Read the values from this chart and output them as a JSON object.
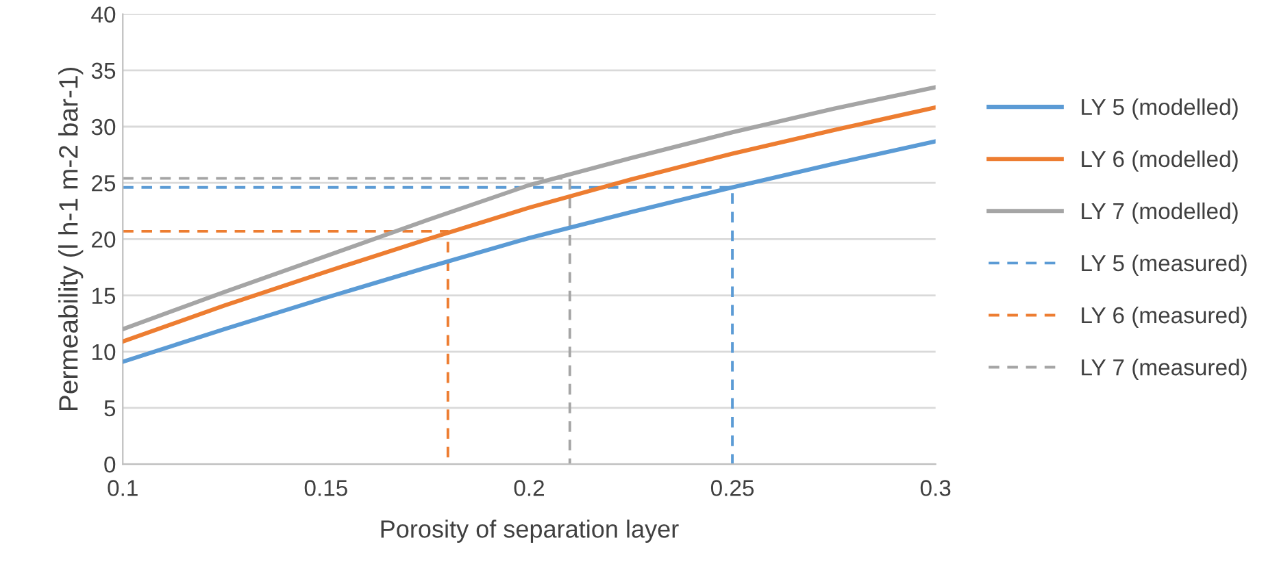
{
  "chart_data": {
    "type": "line",
    "xlabel": "Porosity of separation layer",
    "ylabel": "Permeability (l h-1 m-2 bar-1)",
    "xlim": [
      0.1,
      0.3
    ],
    "xticks": [
      0.1,
      0.15,
      0.2,
      0.25,
      0.3
    ],
    "ylim": [
      0,
      40
    ],
    "yticks": [
      0,
      5,
      10,
      15,
      20,
      25,
      30,
      35,
      40
    ],
    "grid": "y",
    "legend": "right",
    "marker": "none",
    "series": [
      {
        "name": "LY 5 (modelled)",
        "color": "#5b9bd5",
        "line_style": "solid",
        "x": [
          0.1,
          0.125,
          0.15,
          0.175,
          0.2,
          0.225,
          0.25,
          0.275,
          0.3
        ],
        "values": [
          9.1,
          12.0,
          14.8,
          17.5,
          20.1,
          22.4,
          24.6,
          26.7,
          28.7
        ]
      },
      {
        "name": "LY 6 (modelled)",
        "color": "#ed7d31",
        "line_style": "solid",
        "x": [
          0.1,
          0.125,
          0.15,
          0.175,
          0.2,
          0.225,
          0.25,
          0.275,
          0.3
        ],
        "values": [
          10.9,
          14.1,
          17.1,
          20.0,
          22.8,
          25.3,
          27.6,
          29.7,
          31.7
        ]
      },
      {
        "name": "LY 7 (modelled)",
        "color": "#a5a5a5",
        "line_style": "solid",
        "x": [
          0.1,
          0.125,
          0.15,
          0.175,
          0.2,
          0.225,
          0.25,
          0.275,
          0.3
        ],
        "values": [
          12.0,
          15.3,
          18.5,
          21.7,
          24.8,
          27.2,
          29.5,
          31.6,
          33.5
        ]
      },
      {
        "name": "LY 5 (measured)",
        "color": "#5b9bd5",
        "line_style": "dashed",
        "x": [
          0.1,
          0.25,
          0.25
        ],
        "values": [
          24.6,
          24.6,
          0
        ]
      },
      {
        "name": "LY 6 (measured)",
        "color": "#ed7d31",
        "line_style": "dashed",
        "x": [
          0.1,
          0.18,
          0.18
        ],
        "values": [
          20.7,
          20.7,
          0
        ]
      },
      {
        "name": "LY 7 (measured)",
        "color": "#a5a5a5",
        "line_style": "dashed",
        "x": [
          0.1,
          0.21,
          0.21
        ],
        "values": [
          25.4,
          25.4,
          0
        ]
      }
    ]
  }
}
